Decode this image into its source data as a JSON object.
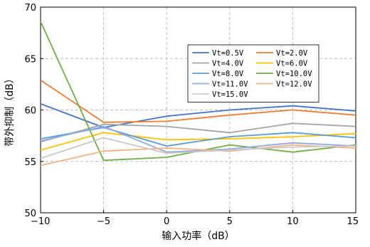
{
  "chart_data": {
    "type": "line",
    "xlabel": "输入功率（dB）",
    "ylabel": "带外抑制（dB）",
    "xlim": [
      -10,
      15
    ],
    "ylim": [
      50,
      70
    ],
    "xticks": [
      -10,
      -5,
      0,
      5,
      10,
      15
    ],
    "yticks": [
      50,
      55,
      60,
      65,
      70
    ],
    "xtick_labels": [
      "−10",
      "−5",
      "0",
      "5",
      "10",
      "15"
    ],
    "ytick_labels": [
      "50",
      "55",
      "60",
      "65",
      "70"
    ],
    "grid": true,
    "legend_placement": "upper-center",
    "x": [
      -10,
      -5,
      0,
      5,
      10,
      15
    ],
    "series": [
      {
        "name": "Vt=0.5V",
        "color": "#4472C4",
        "values": [
          60.6,
          58.3,
          59.4,
          60.0,
          60.4,
          59.9
        ]
      },
      {
        "name": "Vt=2.0V",
        "color": "#ED7D31",
        "values": [
          62.9,
          58.8,
          58.9,
          59.5,
          60.0,
          59.5
        ]
      },
      {
        "name": "Vt=4.0V",
        "color": "#A5A5A5",
        "values": [
          56.9,
          58.6,
          58.4,
          57.8,
          58.7,
          58.4
        ]
      },
      {
        "name": "Vt=6.0V",
        "color": "#FFC000",
        "values": [
          56.1,
          57.8,
          57.1,
          57.2,
          57.4,
          57.7
        ]
      },
      {
        "name": "Vt=8.0V",
        "color": "#5B9BD5",
        "values": [
          57.2,
          58.3,
          56.5,
          57.4,
          57.8,
          57.3
        ]
      },
      {
        "name": "Vt=10.0V",
        "color": "#70AD47",
        "values": [
          68.6,
          55.1,
          55.4,
          56.6,
          55.9,
          56.6
        ]
      },
      {
        "name": "Vt=11.0V",
        "color": "#8FAADC",
        "values": [
          57.0,
          58.4,
          55.9,
          56.2,
          56.8,
          56.5
        ]
      },
      {
        "name": "Vt=12.0V",
        "color": "#F4B183",
        "values": [
          54.6,
          56.0,
          56.3,
          56.0,
          56.6,
          56.3
        ]
      },
      {
        "name": "Vt=15.0V",
        "color": "#C9C9C9",
        "values": [
          55.3,
          57.3,
          55.8,
          56.1,
          56.4,
          56.5
        ]
      }
    ]
  }
}
